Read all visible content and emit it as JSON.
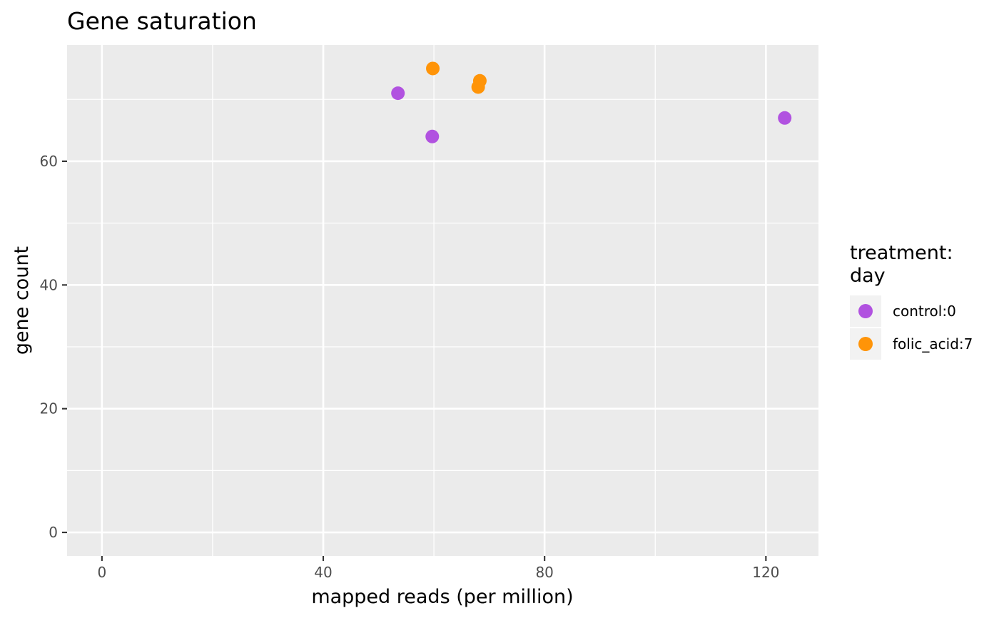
{
  "chart_data": {
    "type": "scatter",
    "title": "Gene saturation",
    "xlabel": "mapped reads (per million)",
    "ylabel": "gene count",
    "xlim": [
      -6.3,
      129.5
    ],
    "ylim": [
      -3.8,
      78.8
    ],
    "x_ticks": [
      0,
      40,
      80,
      120
    ],
    "x_minor_ticks": [
      20,
      60,
      100
    ],
    "y_ticks": [
      0,
      20,
      40,
      60
    ],
    "y_minor_ticks": [
      10,
      30,
      50,
      70
    ],
    "grid": true,
    "legend": {
      "title_lines": [
        "treatment:",
        "day"
      ],
      "placement": "right"
    },
    "series": [
      {
        "name": "control:0",
        "color": "#b152e0",
        "points": [
          {
            "x": 53.5,
            "y": 71
          },
          {
            "x": 59.7,
            "y": 64
          },
          {
            "x": 123.4,
            "y": 67
          }
        ]
      },
      {
        "name": "folic_acid:7",
        "color": "#ff9408",
        "points": [
          {
            "x": 59.8,
            "y": 75
          },
          {
            "x": 68.0,
            "y": 72
          },
          {
            "x": 68.3,
            "y": 73
          }
        ]
      }
    ]
  }
}
